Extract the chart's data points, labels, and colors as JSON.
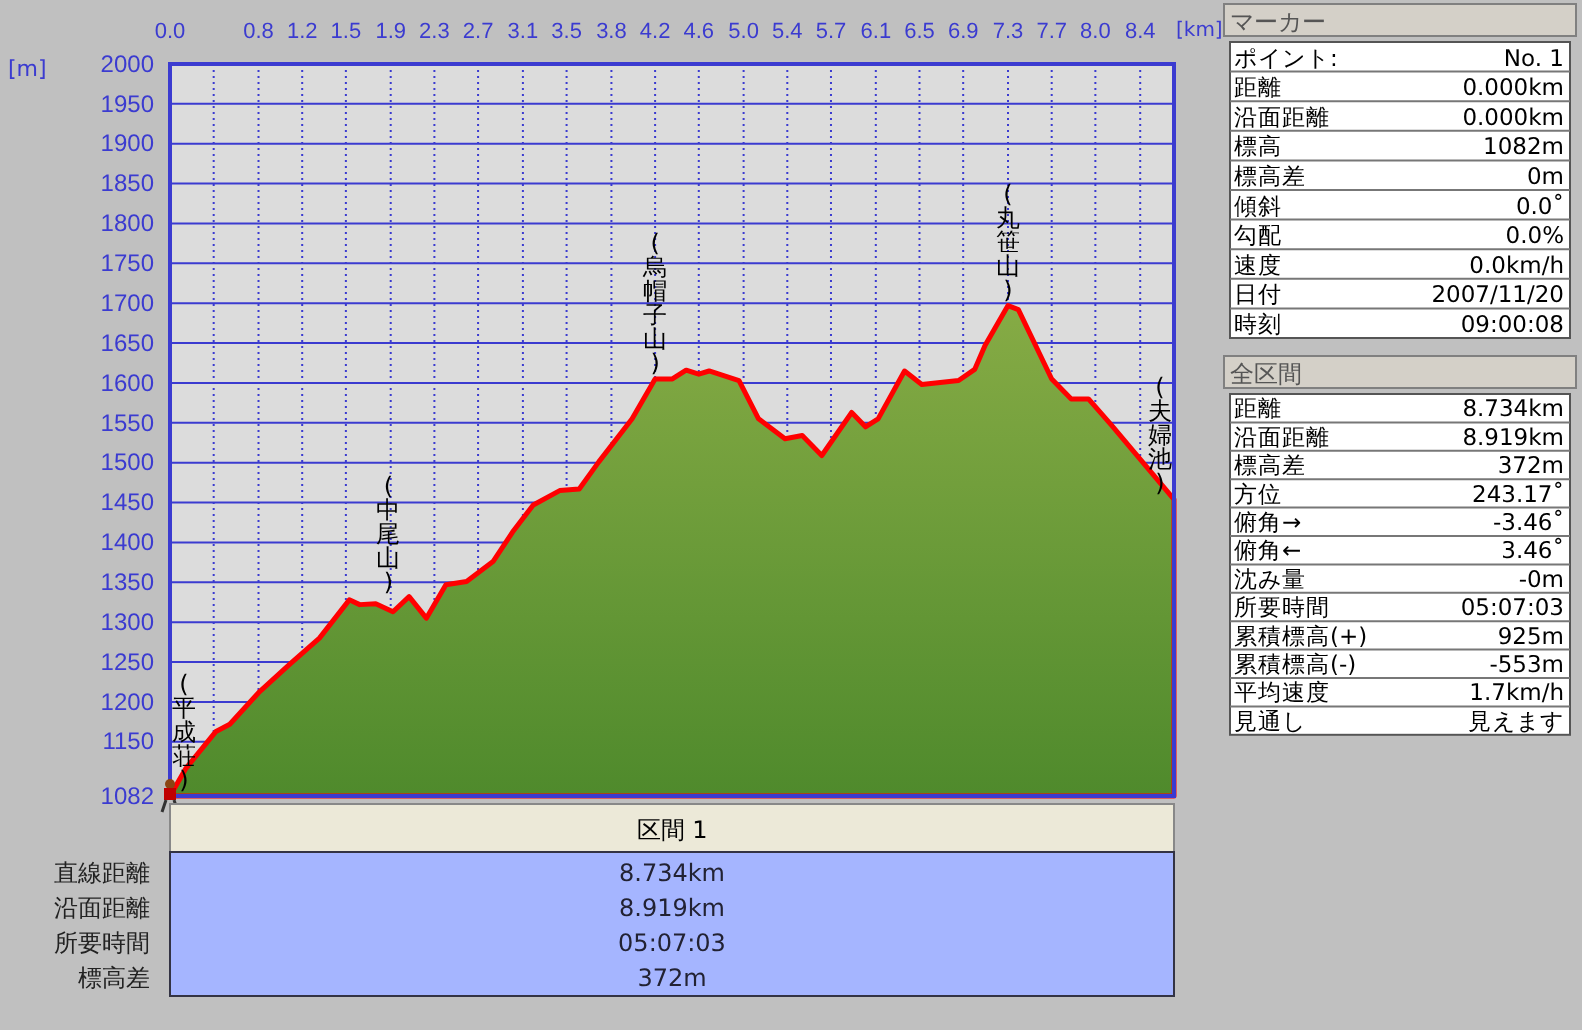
{
  "chart_data": [
    {
      "type": "area",
      "xlabel": "[km]",
      "ylabel": "[m]",
      "color": "#ff0000",
      "grid": true,
      "marker": "none",
      "x": [
        0,
        0.14,
        0.4,
        0.52,
        0.78,
        1.04,
        1.3,
        1.56,
        1.65,
        1.79,
        1.94,
        2.08,
        2.23,
        2.4,
        2.58,
        2.81,
        2.98,
        3.16,
        3.39,
        3.56,
        3.73,
        4.02,
        4.22,
        4.37,
        4.49,
        4.6,
        4.69,
        4.95,
        5.12,
        5.35,
        5.5,
        5.67,
        5.93,
        6.05,
        6.16,
        6.39,
        6.54,
        6.86,
        7.0,
        7.09,
        7.29,
        7.38,
        7.67,
        7.84,
        7.99,
        8.19,
        8.734
      ],
      "values": [
        1082,
        1117,
        1163,
        1172,
        1213,
        1247,
        1280,
        1328,
        1322,
        1323,
        1313,
        1332,
        1305,
        1347,
        1351,
        1376,
        1413,
        1447,
        1465,
        1467,
        1501,
        1555,
        1605,
        1605,
        1616,
        1611,
        1615,
        1603,
        1555,
        1530,
        1534,
        1509,
        1563,
        1545,
        1555,
        1615,
        1598,
        1603,
        1617,
        1647,
        1697,
        1692,
        1605,
        1580,
        1580,
        1547,
        1454
      ],
      "xlim": [
        0,
        8.734
      ],
      "xticks": [
        {
          "value": 0,
          "label": "0.0"
        },
        {
          "value": 0.38,
          "label": null
        },
        {
          "value": 0.77,
          "label": "0.8"
        },
        {
          "value": 1.15,
          "label": "1.2"
        },
        {
          "value": 1.53,
          "label": "1.5"
        },
        {
          "value": 1.92,
          "label": "1.9"
        },
        {
          "value": 2.3,
          "label": "2.3"
        },
        {
          "value": 2.68,
          "label": "2.7"
        },
        {
          "value": 3.07,
          "label": "3.1"
        },
        {
          "value": 3.45,
          "label": "3.5"
        },
        {
          "value": 3.84,
          "label": "3.8"
        },
        {
          "value": 4.22,
          "label": "4.2"
        },
        {
          "value": 4.6,
          "label": "4.6"
        },
        {
          "value": 4.99,
          "label": "5.0"
        },
        {
          "value": 5.37,
          "label": "5.4"
        },
        {
          "value": 5.75,
          "label": "5.7"
        },
        {
          "value": 6.14,
          "label": "6.1"
        },
        {
          "value": 6.52,
          "label": "6.5"
        },
        {
          "value": 6.9,
          "label": "6.9"
        },
        {
          "value": 7.29,
          "label": "7.3"
        },
        {
          "value": 7.67,
          "label": "7.7"
        },
        {
          "value": 8.05,
          "label": "8.0"
        },
        {
          "value": 8.44,
          "label": "8.4"
        }
      ],
      "ylim": [
        1082,
        2000
      ],
      "yticks": [
        1082,
        1150,
        1200,
        1250,
        1300,
        1350,
        1400,
        1450,
        1500,
        1550,
        1600,
        1650,
        1700,
        1750,
        1800,
        1850,
        1900,
        1950,
        2000
      ],
      "annotations": [
        {
          "text": "(平成荘)",
          "x": 0,
          "y": 1082
        },
        {
          "text": "(中尾山)",
          "x": 1.9,
          "y": 1330
        },
        {
          "text": "(烏帽子山)",
          "x": 4.22,
          "y": 1605
        },
        {
          "text": "(丸笹山)",
          "x": 7.29,
          "y": 1697
        },
        {
          "text": "(夫婦池)",
          "x": 8.734,
          "y": 1454
        }
      ]
    },
    {
      "type": "other",
      "title": "マーカー",
      "annotations": [
        "ポイント:",
        "No. 1",
        "距離",
        "0.000km",
        "沿面距離",
        "0.000km",
        "標高",
        "1082m",
        "標高差",
        "0m",
        "傾斜",
        "0.0˚",
        "勾配",
        "0.0%",
        "速度",
        "0.0km/h",
        "日付",
        "2007/11/20",
        "時刻",
        "09:00:08"
      ]
    },
    {
      "type": "other",
      "title": "全区間",
      "annotations": [
        "距離",
        "8.734km",
        "沿面距離",
        "8.919km",
        "標高差",
        "372m",
        "方位",
        "243.17˚",
        "俯角→",
        "-3.46˚",
        "俯角←",
        "3.46˚",
        "沈み量",
        "-0m",
        "所要時間",
        "05:07:03",
        "累積標高(+)",
        "925m",
        "累積標高(-)",
        "-553m",
        "平均速度",
        "1.7km/h",
        "見通し",
        "見えます"
      ]
    },
    {
      "type": "other",
      "title": "区間 1",
      "annotations": [
        "直線距離",
        "8.734km",
        "沿面距離",
        "8.919km",
        "所要時間",
        "05:07:03",
        "標高差",
        "372m"
      ]
    }
  ]
}
